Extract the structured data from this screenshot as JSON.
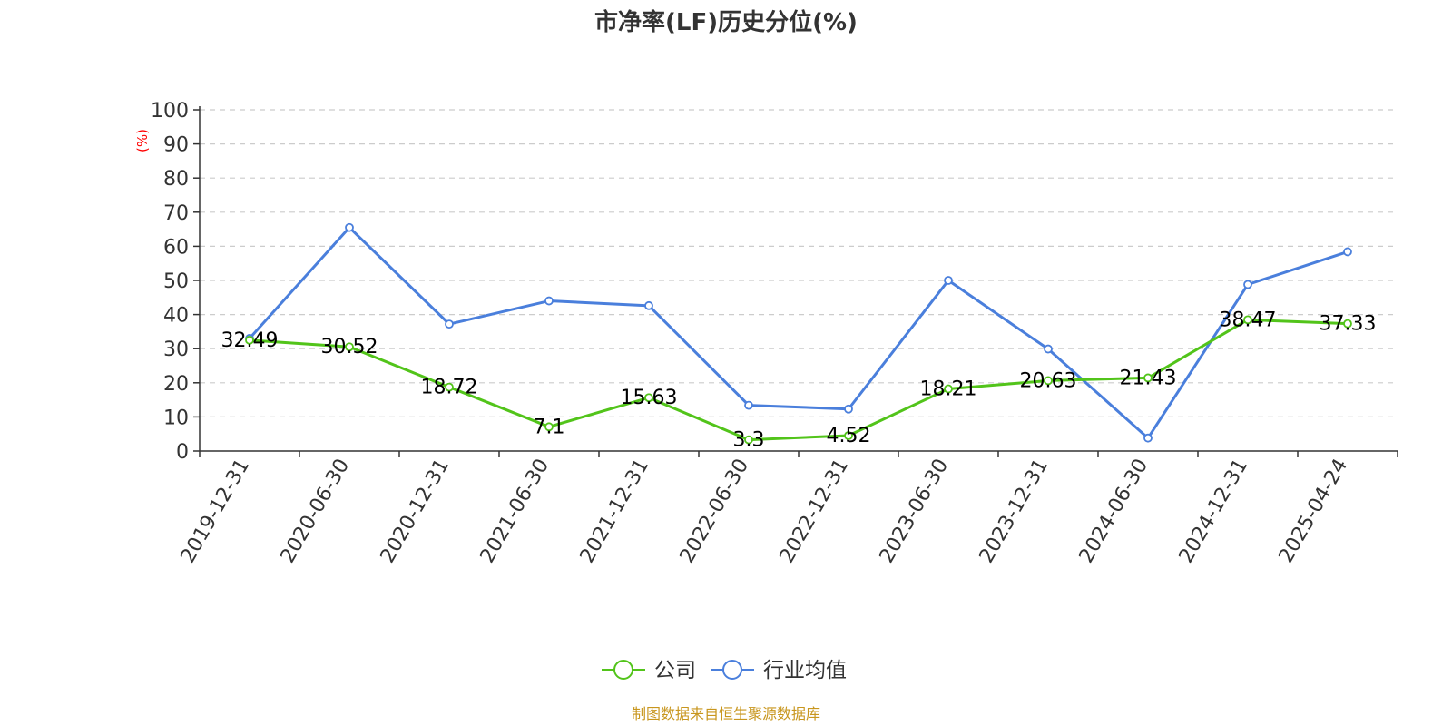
{
  "chart_data": {
    "type": "line",
    "title": "市净率(LF)历史分位(%)",
    "ylabel": "(%)",
    "xlabel": "",
    "ylim": [
      0,
      100
    ],
    "yticks": [
      0,
      10,
      20,
      30,
      40,
      50,
      60,
      70,
      80,
      90,
      100
    ],
    "grid": true,
    "categories": [
      "2019-12-31",
      "2020-06-30",
      "2020-12-31",
      "2021-06-30",
      "2021-12-31",
      "2022-06-30",
      "2022-12-31",
      "2023-06-30",
      "2023-12-31",
      "2024-06-30",
      "2024-12-31",
      "2025-04-24"
    ],
    "series": [
      {
        "name": "公司",
        "color": "#52c41a",
        "show_labels": true,
        "values": [
          32.49,
          30.52,
          18.72,
          7.1,
          15.63,
          3.3,
          4.52,
          18.21,
          20.63,
          21.43,
          38.47,
          37.33
        ]
      },
      {
        "name": "行业均值",
        "color": "#4a7fdc",
        "show_labels": false,
        "values": [
          33,
          65.5,
          37.2,
          44,
          42.6,
          13.4,
          12.3,
          50,
          29.9,
          3.8,
          48.8,
          58.4
        ]
      }
    ],
    "legend_position": "bottom-center",
    "label_color": "#000000",
    "axis_color": "#333333",
    "grid_color": "#cccccc",
    "ylabel_color": "#ff0000",
    "source_color": "#c8961e",
    "source": "制图数据来自恒生聚源数据库"
  }
}
